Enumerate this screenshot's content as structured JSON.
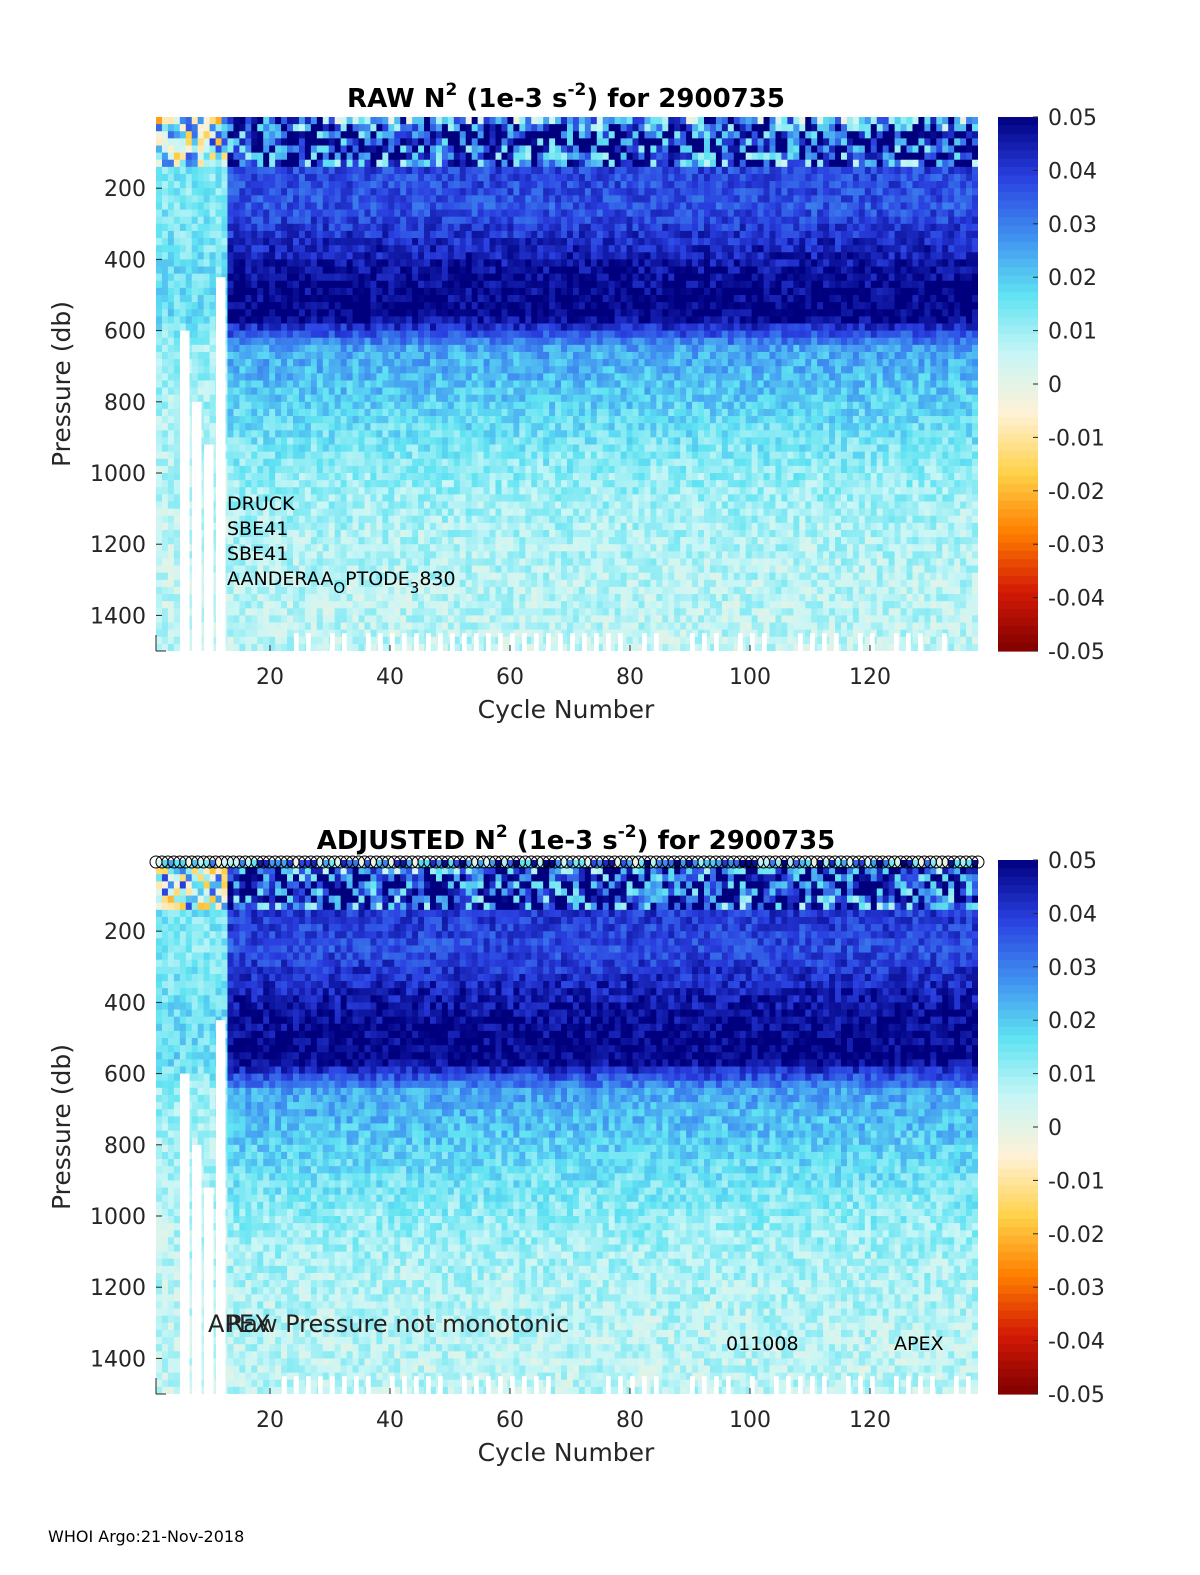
{
  "footer": "WHOI Argo:21-Nov-2018",
  "colors": {
    "colormap": [
      "#7f0000",
      "#d41a05",
      "#ff7f00",
      "#ffd24a",
      "#fff1d6",
      "#c8f6f6",
      "#5fe3f2",
      "#3f8ff0",
      "#2a3fe0",
      "#00007f"
    ],
    "flag_white": "#ffffff",
    "marker_stroke": "#000000"
  },
  "chart_data": [
    {
      "type": "heatmap",
      "title_main": "RAW N",
      "title_sup1": "2",
      "title_mid": " (1e-3 s",
      "title_sup2": "-2",
      "title_end": ") for 2900735",
      "xlabel": "Cycle Number",
      "ylabel": "Pressure (db)",
      "xlim": [
        1,
        138
      ],
      "ylim": [
        1500,
        0
      ],
      "xticks": [
        20,
        40,
        60,
        80,
        100,
        120
      ],
      "yticks": [
        200,
        400,
        600,
        800,
        1000,
        1200,
        1400
      ],
      "colorbar": {
        "clim": [
          -0.05,
          0.05
        ],
        "ticks": [
          0.05,
          0.04,
          0.03,
          0.02,
          0.01,
          0,
          -0.01,
          -0.02,
          -0.03,
          -0.04,
          -0.05
        ],
        "tick_labels": [
          "0.05",
          "0.04",
          "0.03",
          "0.02",
          "0.01",
          "0",
          "-0.01",
          "-0.02",
          "-0.03",
          "-0.04",
          "-0.05"
        ]
      },
      "depth_profile": [
        {
          "p": 0,
          "v": 0.03
        },
        {
          "p": 60,
          "v": 0.05
        },
        {
          "p": 150,
          "v": 0.038
        },
        {
          "p": 250,
          "v": 0.036
        },
        {
          "p": 350,
          "v": 0.042
        },
        {
          "p": 450,
          "v": 0.048
        },
        {
          "p": 560,
          "v": 0.05
        },
        {
          "p": 650,
          "v": 0.025
        },
        {
          "p": 800,
          "v": 0.019
        },
        {
          "p": 950,
          "v": 0.013
        },
        {
          "p": 1100,
          "v": 0.009
        },
        {
          "p": 1300,
          "v": 0.007
        },
        {
          "p": 1500,
          "v": 0.006
        }
      ],
      "sensor_notes": [
        "DRUCK",
        "SBE41",
        "SBE41"
      ],
      "sensor_optode": {
        "a": "AANDERAA",
        "b": "O",
        "c": "PTODE",
        "d": "3",
        "e": "830"
      },
      "flag_marks": false
    },
    {
      "type": "heatmap",
      "title_main": "ADJUSTED N",
      "title_sup1": "2",
      "title_mid": " (1e-3 s",
      "title_sup2": "-2",
      "title_end": ") for 2900735",
      "xlabel": "Cycle Number",
      "ylabel": "Pressure (db)",
      "xlim": [
        1,
        138
      ],
      "ylim": [
        1500,
        0
      ],
      "xticks": [
        20,
        40,
        60,
        80,
        100,
        120
      ],
      "yticks": [
        200,
        400,
        600,
        800,
        1000,
        1200,
        1400
      ],
      "colorbar": {
        "clim": [
          -0.05,
          0.05
        ],
        "ticks": [
          0.05,
          0.04,
          0.03,
          0.02,
          0.01,
          0,
          -0.01,
          -0.02,
          -0.03,
          -0.04,
          -0.05
        ],
        "tick_labels": [
          "0.05",
          "0.04",
          "0.03",
          "0.02",
          "0.01",
          "0",
          "-0.01",
          "-0.02",
          "-0.03",
          "-0.04",
          "-0.05"
        ]
      },
      "depth_profile": [
        {
          "p": 0,
          "v": 0.03
        },
        {
          "p": 60,
          "v": 0.05
        },
        {
          "p": 150,
          "v": 0.04
        },
        {
          "p": 250,
          "v": 0.037
        },
        {
          "p": 350,
          "v": 0.043
        },
        {
          "p": 450,
          "v": 0.048
        },
        {
          "p": 560,
          "v": 0.05
        },
        {
          "p": 650,
          "v": 0.025
        },
        {
          "p": 800,
          "v": 0.019
        },
        {
          "p": 950,
          "v": 0.013
        },
        {
          "p": 1100,
          "v": 0.009
        },
        {
          "p": 1300,
          "v": 0.007
        },
        {
          "p": 1500,
          "v": 0.006
        }
      ],
      "notes": {
        "overlap_a": "APEX",
        "overlap_b": "Raw Pressure not monotonic",
        "serial": "011008",
        "model": "APEX"
      },
      "flag_marks": true
    }
  ]
}
